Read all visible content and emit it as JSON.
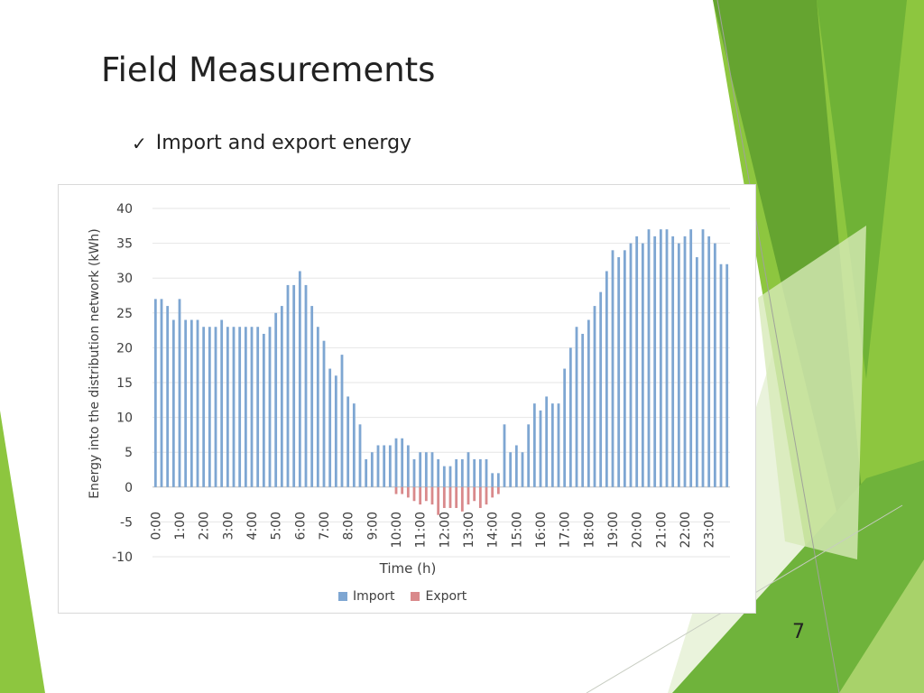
{
  "slide": {
    "title": "Field Measurements",
    "bullet": "Import and export energy",
    "page_number": "7",
    "accent_colors": [
      "#8DC63F",
      "#5E9E2E",
      "#BDDC8A",
      "#E5F0D0"
    ]
  },
  "chart_data": {
    "type": "bar",
    "title": "",
    "xlabel": "Time (h)",
    "ylabel": "Energy into the distribution network (kWh)",
    "ylim": [
      -10,
      40
    ],
    "yticks": [
      40,
      35,
      30,
      25,
      20,
      15,
      10,
      5,
      0,
      -5,
      -10
    ],
    "grid": true,
    "legend_position": "bottom",
    "interval_hours": 0.25,
    "x_tick_labels": [
      "0:00",
      "1:00",
      "2:00",
      "3:00",
      "4:00",
      "5:00",
      "6:00",
      "7:00",
      "8:00",
      "9:00",
      "10:00",
      "11:00",
      "12:00",
      "13:00",
      "14:00",
      "15:00",
      "16:00",
      "17:00",
      "18:00",
      "19:00",
      "20:00",
      "21:00",
      "22:00",
      "23:00"
    ],
    "series": [
      {
        "name": "Import",
        "color": "#7EA6D2",
        "values": [
          27,
          27,
          26,
          24,
          27,
          24,
          24,
          24,
          23,
          23,
          23,
          24,
          23,
          23,
          23,
          23,
          23,
          23,
          22,
          23,
          25,
          26,
          29,
          29,
          31,
          29,
          26,
          23,
          21,
          17,
          16,
          19,
          13,
          12,
          9,
          4,
          5,
          6,
          6,
          6,
          7,
          7,
          6,
          4,
          5,
          5,
          5,
          4,
          3,
          3,
          4,
          4,
          5,
          4,
          4,
          4,
          2,
          2,
          9,
          5,
          6,
          5,
          9,
          12,
          11,
          13,
          12,
          12,
          17,
          20,
          23,
          22,
          24,
          26,
          28,
          31,
          34,
          33,
          34,
          35,
          36,
          35,
          37,
          36,
          37,
          37,
          36,
          35,
          36,
          37,
          33,
          37,
          36,
          35,
          32,
          32
        ]
      },
      {
        "name": "Export",
        "color": "#D9898B",
        "values": [
          0,
          0,
          0,
          0,
          0,
          0,
          0,
          0,
          0,
          0,
          0,
          0,
          0,
          0,
          0,
          0,
          0,
          0,
          0,
          0,
          0,
          0,
          0,
          0,
          0,
          0,
          0,
          0,
          0,
          0,
          0,
          0,
          0,
          0,
          0,
          0,
          0,
          0,
          0,
          0,
          -1,
          -1,
          -1.5,
          -2,
          -2.5,
          -2,
          -2.5,
          -4,
          -3,
          -3,
          -3,
          -3.5,
          -2.5,
          -2,
          -3,
          -2.5,
          -1.5,
          -1,
          0,
          0,
          0,
          0,
          0,
          0,
          0,
          0,
          0,
          0,
          0,
          0,
          0,
          0,
          0,
          0,
          0,
          0,
          0,
          0,
          0,
          0,
          0,
          0,
          0,
          0,
          0,
          0,
          0,
          0,
          0,
          0,
          0,
          0,
          0,
          0,
          0,
          0
        ]
      }
    ]
  }
}
